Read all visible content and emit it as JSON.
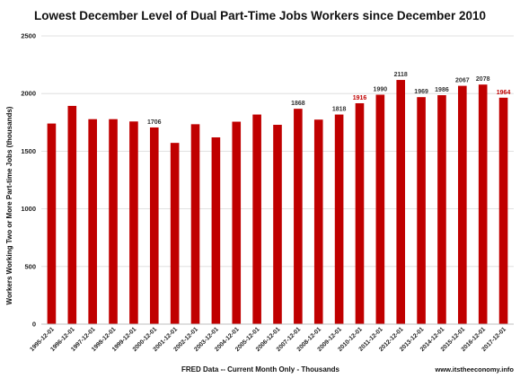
{
  "chart_data": {
    "type": "bar",
    "title": "Lowest December Level of Dual Part-Time Jobs Workers since December 2010",
    "xlabel": "FRED Data -- Current Month Only - Thousands",
    "ylabel": "Workers Working Two or More Part-time Jobs (thousands)",
    "credit": "www.itstheeconomy.info",
    "ylim": [
      0,
      2500
    ],
    "yticks": [
      "0",
      "500",
      "1000",
      "1500",
      "2000",
      "2500"
    ],
    "grid": true,
    "bar_color": "#c00000",
    "categories": [
      "1995-12-01",
      "1996-12-01",
      "1997-12-01",
      "1998-12-01",
      "1999-12-01",
      "2000-12-01",
      "2001-12-01",
      "2002-12-01",
      "2003-12-01",
      "2004-12-01",
      "2005-12-01",
      "2006-12-01",
      "2007-12-01",
      "2008-12-01",
      "2009-12-01",
      "2010-12-01",
      "2011-12-01",
      "2012-12-01",
      "2013-12-01",
      "2014-12-01",
      "2015-12-01",
      "2016-12-01",
      "2017-12-01"
    ],
    "values": [
      1740,
      1893,
      1778,
      1778,
      1758,
      1706,
      1572,
      1734,
      1620,
      1756,
      1818,
      1729,
      1868,
      1774,
      1818,
      1916,
      1990,
      2118,
      1969,
      1986,
      2067,
      2078,
      1964
    ],
    "data_labels": [
      {
        "index": 5,
        "text": "1706",
        "color": "#333333"
      },
      {
        "index": 12,
        "text": "1868",
        "color": "#333333"
      },
      {
        "index": 14,
        "text": "1818",
        "color": "#333333"
      },
      {
        "index": 15,
        "text": "1916",
        "color": "#c00000"
      },
      {
        "index": 16,
        "text": "1990",
        "color": "#333333"
      },
      {
        "index": 17,
        "text": "2118",
        "color": "#333333"
      },
      {
        "index": 18,
        "text": "1969",
        "color": "#333333"
      },
      {
        "index": 19,
        "text": "1986",
        "color": "#333333"
      },
      {
        "index": 20,
        "text": "2067",
        "color": "#333333"
      },
      {
        "index": 21,
        "text": "2078",
        "color": "#333333"
      },
      {
        "index": 22,
        "text": "1964",
        "color": "#c00000"
      }
    ]
  }
}
